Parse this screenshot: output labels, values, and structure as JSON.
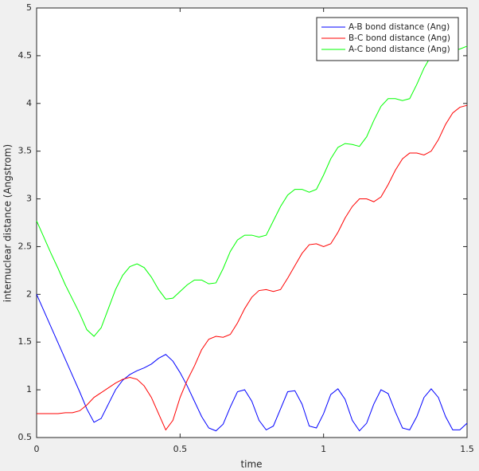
{
  "chart_data": {
    "type": "line",
    "xlabel": "time",
    "ylabel": "internuclear distance (Angstrom)",
    "xlim": [
      0,
      1.5
    ],
    "ylim": [
      0.5,
      5
    ],
    "xticks": [
      0,
      0.5,
      1,
      1.5
    ],
    "yticks": [
      0.5,
      1,
      1.5,
      2,
      2.5,
      3,
      3.5,
      4,
      4.5,
      5
    ],
    "grid": false,
    "legend": "top-right",
    "x": [
      0,
      0.025,
      0.05,
      0.075,
      0.1,
      0.125,
      0.15,
      0.175,
      0.2,
      0.225,
      0.25,
      0.275,
      0.3,
      0.325,
      0.35,
      0.375,
      0.4,
      0.425,
      0.45,
      0.475,
      0.5,
      0.525,
      0.55,
      0.575,
      0.6,
      0.625,
      0.65,
      0.675,
      0.7,
      0.725,
      0.75,
      0.775,
      0.8,
      0.825,
      0.85,
      0.875,
      0.9,
      0.925,
      0.95,
      0.975,
      1,
      1.025,
      1.05,
      1.075,
      1.1,
      1.125,
      1.15,
      1.175,
      1.2,
      1.225,
      1.25,
      1.275,
      1.3,
      1.325,
      1.35,
      1.375,
      1.4,
      1.425,
      1.45,
      1.475,
      1.5
    ],
    "series": [
      {
        "name": "A-B bond distance (Ang)",
        "color": "#0000ff",
        "values": [
          2.0,
          1.83,
          1.66,
          1.49,
          1.32,
          1.15,
          0.98,
          0.8,
          0.66,
          0.7,
          0.85,
          1.0,
          1.1,
          1.16,
          1.2,
          1.23,
          1.27,
          1.33,
          1.37,
          1.3,
          1.18,
          1.04,
          0.88,
          0.72,
          0.6,
          0.57,
          0.64,
          0.82,
          0.98,
          1.0,
          0.88,
          0.68,
          0.58,
          0.62,
          0.8,
          0.98,
          0.99,
          0.85,
          0.62,
          0.6,
          0.75,
          0.95,
          1.01,
          0.9,
          0.68,
          0.57,
          0.65,
          0.85,
          1.0,
          0.96,
          0.77,
          0.6,
          0.58,
          0.72,
          0.92,
          1.01,
          0.92,
          0.72,
          0.58,
          0.58,
          0.65
        ]
      },
      {
        "name": "B-C bond distance (Ang)",
        "color": "#ff0000",
        "values": [
          0.75,
          0.75,
          0.75,
          0.75,
          0.76,
          0.76,
          0.78,
          0.84,
          0.92,
          0.97,
          1.02,
          1.07,
          1.11,
          1.13,
          1.11,
          1.04,
          0.92,
          0.75,
          0.58,
          0.68,
          0.92,
          1.1,
          1.25,
          1.42,
          1.53,
          1.56,
          1.55,
          1.58,
          1.7,
          1.85,
          1.97,
          2.04,
          2.05,
          2.03,
          2.05,
          2.17,
          2.3,
          2.43,
          2.52,
          2.53,
          2.5,
          2.53,
          2.65,
          2.8,
          2.92,
          3.0,
          3.0,
          2.97,
          3.02,
          3.15,
          3.3,
          3.42,
          3.48,
          3.48,
          3.46,
          3.5,
          3.62,
          3.78,
          3.9,
          3.96,
          3.98
        ]
      },
      {
        "name": "A-C bond distance (Ang)",
        "color": "#00ff00",
        "values": [
          2.77,
          2.6,
          2.43,
          2.27,
          2.1,
          1.95,
          1.8,
          1.63,
          1.56,
          1.65,
          1.85,
          2.05,
          2.2,
          2.29,
          2.32,
          2.28,
          2.18,
          2.05,
          1.95,
          1.96,
          2.03,
          2.1,
          2.15,
          2.15,
          2.11,
          2.12,
          2.27,
          2.45,
          2.57,
          2.62,
          2.62,
          2.6,
          2.62,
          2.77,
          2.92,
          3.04,
          3.1,
          3.1,
          3.07,
          3.1,
          3.25,
          3.42,
          3.54,
          3.58,
          3.57,
          3.55,
          3.65,
          3.82,
          3.97,
          4.05,
          4.05,
          4.03,
          4.05,
          4.2,
          4.37,
          4.5,
          4.55,
          4.55,
          4.55,
          4.57,
          4.6
        ]
      }
    ]
  }
}
